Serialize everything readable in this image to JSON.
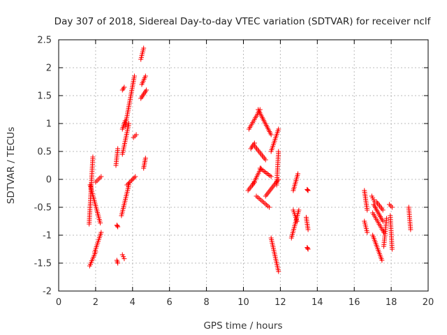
{
  "chart_data": {
    "type": "scatter",
    "title": "Day 307 of 2018, Sidereal Day-to-day VTEC variation (SDTVAR) for receiver nclf",
    "xlabel": "GPS time / hours",
    "ylabel": "SDTVAR / TECUs",
    "xlim": [
      0,
      20
    ],
    "ylim": [
      -2,
      2.5
    ],
    "xticks": [
      0,
      2,
      4,
      6,
      8,
      10,
      12,
      14,
      16,
      18,
      20
    ],
    "yticks": [
      -2,
      -1.5,
      -1,
      -0.5,
      0,
      0.5,
      1,
      1.5,
      2,
      2.5
    ],
    "xtick_labels": [
      "0",
      "2",
      "4",
      "6",
      "8",
      "10",
      "12",
      "14",
      "16",
      "18",
      "20"
    ],
    "ytick_labels": [
      "-2",
      "-1.5",
      "-1",
      "-0.5",
      "0",
      "0.5",
      "1",
      "1.5",
      "2",
      "2.5"
    ],
    "grid": true,
    "marker": "+",
    "color": "#ff0000",
    "segments": [
      {
        "x": [
          1.65,
          1.85
        ],
        "y": [
          -0.8,
          0.4
        ]
      },
      {
        "x": [
          1.7,
          2.25
        ],
        "y": [
          -0.1,
          -0.78
        ]
      },
      {
        "x": [
          1.68,
          2.0
        ],
        "y": [
          -1.55,
          -1.3
        ]
      },
      {
        "x": [
          1.95,
          2.3
        ],
        "y": [
          -1.3,
          -0.95
        ]
      },
      {
        "x": [
          2.0,
          2.3
        ],
        "y": [
          -0.05,
          0.05
        ]
      },
      {
        "x": [
          3.1,
          3.2
        ],
        "y": [
          0.25,
          0.55
        ]
      },
      {
        "x": [
          3.15,
          3.2
        ],
        "y": [
          -0.82,
          -0.85
        ]
      },
      {
        "x": [
          3.15,
          3.2
        ],
        "y": [
          -1.45,
          -1.5
        ]
      },
      {
        "x": [
          3.45,
          3.55
        ],
        "y": [
          -1.35,
          -1.42
        ]
      },
      {
        "x": [
          3.45,
          3.55
        ],
        "y": [
          1.6,
          1.65
        ]
      },
      {
        "x": [
          3.4,
          3.8
        ],
        "y": [
          -0.65,
          -0.1
        ]
      },
      {
        "x": [
          3.7,
          4.15
        ],
        "y": [
          -0.1,
          0.05
        ]
      },
      {
        "x": [
          3.45,
          3.8
        ],
        "y": [
          0.45,
          1.0
        ]
      },
      {
        "x": [
          3.6,
          4.1
        ],
        "y": [
          0.95,
          1.85
        ]
      },
      {
        "x": [
          3.45,
          3.6
        ],
        "y": [
          0.9,
          1.05
        ]
      },
      {
        "x": [
          4.05,
          4.2
        ],
        "y": [
          0.75,
          0.8
        ]
      },
      {
        "x": [
          4.45,
          4.6
        ],
        "y": [
          2.15,
          2.35
        ]
      },
      {
        "x": [
          4.5,
          4.7
        ],
        "y": [
          1.7,
          1.85
        ]
      },
      {
        "x": [
          4.45,
          4.75
        ],
        "y": [
          1.45,
          1.6
        ]
      },
      {
        "x": [
          4.6,
          4.7
        ],
        "y": [
          0.2,
          0.38
        ]
      },
      {
        "x": [
          10.3,
          10.9
        ],
        "y": [
          0.9,
          1.25
        ]
      },
      {
        "x": [
          10.8,
          11.5
        ],
        "y": [
          1.25,
          0.8
        ]
      },
      {
        "x": [
          10.4,
          10.6
        ],
        "y": [
          0.55,
          0.65
        ]
      },
      {
        "x": [
          10.6,
          11.2
        ],
        "y": [
          0.6,
          0.35
        ]
      },
      {
        "x": [
          10.25,
          10.6
        ],
        "y": [
          -0.2,
          -0.05
        ]
      },
      {
        "x": [
          10.5,
          10.95
        ],
        "y": [
          -0.1,
          0.2
        ]
      },
      {
        "x": [
          10.9,
          11.5
        ],
        "y": [
          0.2,
          0.05
        ]
      },
      {
        "x": [
          10.7,
          11.4
        ],
        "y": [
          -0.3,
          -0.5
        ]
      },
      {
        "x": [
          11.2,
          11.9
        ],
        "y": [
          -0.3,
          0.0
        ]
      },
      {
        "x": [
          11.5,
          11.9
        ],
        "y": [
          0.5,
          0.9
        ]
      },
      {
        "x": [
          11.5,
          11.9
        ],
        "y": [
          -1.05,
          -1.65
        ]
      },
      {
        "x": [
          11.8,
          11.9
        ],
        "y": [
          -0.1,
          0.5
        ]
      },
      {
        "x": [
          12.6,
          13.0
        ],
        "y": [
          -1.05,
          -0.55
        ]
      },
      {
        "x": [
          12.7,
          12.95
        ],
        "y": [
          -0.2,
          0.1
        ]
      },
      {
        "x": [
          12.7,
          12.9
        ],
        "y": [
          -0.55,
          -0.75
        ]
      },
      {
        "x": [
          13.4,
          13.5
        ],
        "y": [
          -0.68,
          -0.9
        ]
      },
      {
        "x": [
          13.45,
          13.5
        ],
        "y": [
          -0.18,
          -0.2
        ]
      },
      {
        "x": [
          13.45,
          13.5
        ],
        "y": [
          -1.22,
          -1.25
        ]
      },
      {
        "x": [
          16.55,
          16.7
        ],
        "y": [
          -0.2,
          -0.55
        ]
      },
      {
        "x": [
          16.55,
          16.7
        ],
        "y": [
          -0.75,
          -0.95
        ]
      },
      {
        "x": [
          16.95,
          17.1
        ],
        "y": [
          -0.3,
          -0.4
        ]
      },
      {
        "x": [
          17.0,
          17.6
        ],
        "y": [
          -0.6,
          -0.95
        ]
      },
      {
        "x": [
          17.05,
          17.55
        ],
        "y": [
          -0.45,
          -0.75
        ]
      },
      {
        "x": [
          17.0,
          17.5
        ],
        "y": [
          -1.0,
          -1.45
        ]
      },
      {
        "x": [
          17.2,
          17.55
        ],
        "y": [
          -0.4,
          -0.55
        ]
      },
      {
        "x": [
          17.6,
          17.75
        ],
        "y": [
          -1.2,
          -0.7
        ]
      },
      {
        "x": [
          17.9,
          18.05
        ],
        "y": [
          -0.45,
          -0.5
        ]
      },
      {
        "x": [
          17.95,
          18.05
        ],
        "y": [
          -0.65,
          -1.25
        ]
      },
      {
        "x": [
          18.95,
          19.05
        ],
        "y": [
          -0.5,
          -0.9
        ]
      }
    ]
  }
}
